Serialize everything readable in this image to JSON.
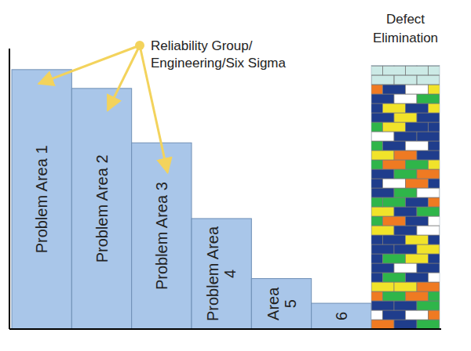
{
  "chart_data": {
    "type": "bar",
    "categories": [
      "Problem Area 1",
      "Problem Area 2",
      "Problem Area 3",
      "Problem Area 4",
      "Area 5",
      "6"
    ],
    "values": [
      92.5,
      85.8,
      66.4,
      39.4,
      18,
      9.2
    ],
    "color": "#a9c6e9",
    "ylim": [
      0,
      100
    ],
    "tick_labels": false,
    "annotations": [
      {
        "text": [
          "Reliability Group/",
          "Engineering/Six Sigma"
        ],
        "points_to": [
          0,
          1,
          2
        ]
      }
    ],
    "tower": {
      "label": [
        "Defect",
        "Elimination"
      ],
      "value": 94
    }
  }
}
